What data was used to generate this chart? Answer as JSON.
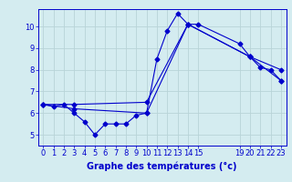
{
  "title": "Graphe des températures (°c)",
  "bg_color": "#d4ecf0",
  "grid_color": "#b8d4d8",
  "line_color": "#0000cc",
  "xlim": [
    -0.5,
    23.5
  ],
  "ylim": [
    4.5,
    10.8
  ],
  "yticks": [
    5,
    6,
    7,
    8,
    9,
    10
  ],
  "xticks": [
    0,
    1,
    2,
    3,
    4,
    5,
    6,
    7,
    8,
    9,
    10,
    11,
    12,
    13,
    14,
    15,
    19,
    20,
    21,
    22,
    23
  ],
  "line1_x": [
    0,
    1,
    2,
    3,
    4,
    5,
    6,
    7,
    8,
    9,
    10,
    11,
    12,
    13,
    14,
    15,
    19,
    20,
    21,
    22,
    23
  ],
  "line1_y": [
    6.4,
    6.3,
    6.4,
    6.0,
    5.6,
    5.0,
    5.5,
    5.5,
    5.5,
    5.9,
    6.0,
    8.5,
    9.8,
    10.6,
    10.1,
    10.1,
    9.2,
    8.6,
    8.1,
    8.0,
    7.5
  ],
  "line2_x": [
    0,
    3,
    10,
    14,
    20,
    23
  ],
  "line2_y": [
    6.4,
    6.4,
    6.5,
    10.1,
    8.6,
    8.0
  ],
  "line3_x": [
    0,
    3,
    10,
    14,
    20,
    23
  ],
  "line3_y": [
    6.4,
    6.2,
    6.0,
    10.1,
    8.6,
    7.5
  ],
  "xlabel_fontsize": 7,
  "tick_fontsize": 6
}
